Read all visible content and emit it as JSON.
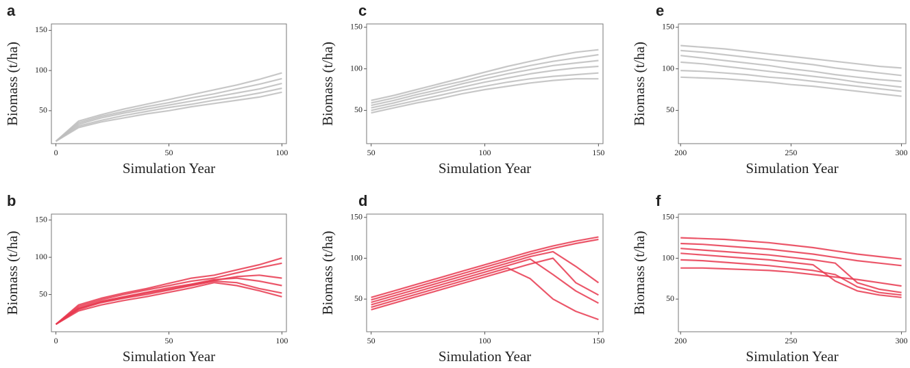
{
  "chart_data": [
    {
      "type": "line",
      "title": "a",
      "xlabel": "Simulation Year",
      "ylabel": "Biomass (t/ha)",
      "x": [
        0,
        10,
        20,
        30,
        40,
        50,
        60,
        70,
        80,
        90,
        100
      ],
      "xlim": [
        -2,
        102
      ],
      "ylim": [
        9,
        158
      ],
      "xticks": [
        0,
        50,
        100
      ],
      "yticks": [
        50,
        100,
        150
      ],
      "series": [
        {
          "color": "#bdbdbd",
          "values": [
            12,
            37,
            45,
            52,
            58,
            64,
            70,
            76,
            82,
            89,
            97
          ]
        },
        {
          "color": "#bdbdbd",
          "values": [
            12,
            35,
            43,
            49,
            55,
            60,
            66,
            71,
            77,
            83,
            90
          ]
        },
        {
          "color": "#bdbdbd",
          "values": [
            12,
            33,
            41,
            47,
            52,
            57,
            62,
            67,
            72,
            77,
            84
          ]
        },
        {
          "color": "#bdbdbd",
          "values": [
            12,
            31,
            38,
            44,
            49,
            54,
            58,
            63,
            67,
            72,
            78
          ]
        },
        {
          "color": "#bdbdbd",
          "values": [
            12,
            29,
            36,
            41,
            46,
            50,
            55,
            59,
            63,
            67,
            73
          ]
        }
      ]
    },
    {
      "type": "line",
      "title": "c",
      "xlabel": "Simulation Year",
      "ylabel": "Biomass (t/ha)",
      "x": [
        50,
        60,
        70,
        80,
        90,
        100,
        110,
        120,
        130,
        140,
        150
      ],
      "xlim": [
        48,
        152
      ],
      "ylim": [
        10,
        154
      ],
      "xticks": [
        50,
        100,
        150
      ],
      "yticks": [
        50,
        100,
        150
      ],
      "series": [
        {
          "color": "#bdbdbd",
          "values": [
            62,
            68,
            75,
            82,
            89,
            96,
            103,
            109,
            115,
            120,
            123
          ]
        },
        {
          "color": "#bdbdbd",
          "values": [
            59,
            65,
            72,
            79,
            85,
            92,
            98,
            104,
            109,
            113,
            117
          ]
        },
        {
          "color": "#bdbdbd",
          "values": [
            56,
            62,
            69,
            75,
            82,
            88,
            94,
            99,
            104,
            107,
            110
          ]
        },
        {
          "color": "#bdbdbd",
          "values": [
            53,
            59,
            66,
            72,
            78,
            84,
            89,
            94,
            98,
            101,
            103
          ]
        },
        {
          "color": "#bdbdbd",
          "values": [
            50,
            56,
            62,
            68,
            74,
            79,
            84,
            88,
            91,
            93,
            95
          ]
        },
        {
          "color": "#bdbdbd",
          "values": [
            47,
            53,
            59,
            64,
            70,
            75,
            79,
            83,
            86,
            88,
            88
          ]
        }
      ]
    },
    {
      "type": "line",
      "title": "e",
      "xlabel": "Simulation Year",
      "ylabel": "Biomass (t/ha)",
      "x": [
        200,
        210,
        220,
        230,
        240,
        250,
        260,
        270,
        280,
        290,
        300
      ],
      "xlim": [
        199,
        302
      ],
      "ylim": [
        10,
        154
      ],
      "xticks": [
        200,
        250,
        300
      ],
      "yticks": [
        50,
        100,
        150
      ],
      "series": [
        {
          "color": "#bdbdbd",
          "values": [
            128,
            126,
            124,
            121,
            118,
            115,
            112,
            109,
            106,
            103,
            101
          ]
        },
        {
          "color": "#bdbdbd",
          "values": [
            122,
            120,
            117,
            114,
            111,
            108,
            105,
            101,
            98,
            95,
            92
          ]
        },
        {
          "color": "#bdbdbd",
          "values": [
            116,
            113,
            110,
            107,
            104,
            100,
            97,
            93,
            90,
            87,
            85
          ]
        },
        {
          "color": "#bdbdbd",
          "values": [
            108,
            106,
            103,
            100,
            97,
            94,
            91,
            88,
            84,
            81,
            78
          ]
        },
        {
          "color": "#bdbdbd",
          "values": [
            98,
            97,
            95,
            93,
            90,
            88,
            85,
            82,
            79,
            76,
            73
          ]
        },
        {
          "color": "#bdbdbd",
          "values": [
            90,
            89,
            88,
            86,
            84,
            81,
            79,
            76,
            73,
            70,
            67
          ]
        }
      ]
    },
    {
      "type": "line",
      "title": "b",
      "xlabel": "Simulation Year",
      "ylabel": "Biomass (t/ha)",
      "x": [
        0,
        10,
        20,
        30,
        40,
        50,
        60,
        70,
        80,
        90,
        100
      ],
      "xlim": [
        -2,
        102
      ],
      "ylim": [
        0,
        158
      ],
      "xticks": [
        0,
        50,
        100
      ],
      "yticks": [
        50,
        100,
        150
      ],
      "series": [
        {
          "color": "#e8384f",
          "values": [
            10,
            36,
            45,
            52,
            58,
            65,
            72,
            76,
            83,
            90,
            99
          ]
        },
        {
          "color": "#e8384f",
          "values": [
            10,
            34,
            43,
            50,
            56,
            62,
            68,
            72,
            79,
            86,
            92
          ]
        },
        {
          "color": "#e8384f",
          "values": [
            10,
            32,
            41,
            47,
            53,
            59,
            64,
            70,
            72,
            68,
            62
          ]
        },
        {
          "color": "#e8384f",
          "values": [
            10,
            30,
            39,
            45,
            50,
            56,
            62,
            68,
            66,
            58,
            52
          ]
        },
        {
          "color": "#e8384f",
          "values": [
            10,
            28,
            36,
            42,
            47,
            53,
            59,
            66,
            62,
            55,
            47
          ]
        },
        {
          "color": "#e8384f",
          "values": [
            10,
            31,
            40,
            46,
            52,
            57,
            63,
            69,
            74,
            76,
            72
          ]
        }
      ]
    },
    {
      "type": "line",
      "title": "d",
      "xlabel": "Simulation Year",
      "ylabel": "Biomass (t/ha)",
      "x": [
        50,
        60,
        70,
        80,
        90,
        100,
        110,
        120,
        130,
        140,
        150
      ],
      "xlim": [
        48,
        152
      ],
      "ylim": [
        10,
        154
      ],
      "xticks": [
        50,
        100,
        150
      ],
      "yticks": [
        50,
        100,
        150
      ],
      "series": [
        {
          "color": "#e8384f",
          "values": [
            52,
            60,
            68,
            76,
            84,
            92,
            100,
            108,
            115,
            121,
            126
          ]
        },
        {
          "color": "#e8384f",
          "values": [
            49,
            57,
            65,
            73,
            81,
            89,
            97,
            105,
            112,
            118,
            123
          ]
        },
        {
          "color": "#e8384f",
          "values": [
            46,
            54,
            62,
            70,
            78,
            86,
            94,
            102,
            108,
            90,
            70
          ]
        },
        {
          "color": "#e8384f",
          "values": [
            43,
            51,
            59,
            67,
            75,
            83,
            91,
            99,
            80,
            60,
            45
          ]
        },
        {
          "color": "#e8384f",
          "values": [
            40,
            48,
            56,
            64,
            72,
            80,
            88,
            75,
            50,
            35,
            25
          ]
        },
        {
          "color": "#e8384f",
          "values": [
            37,
            45,
            53,
            61,
            69,
            77,
            85,
            93,
            100,
            70,
            55
          ]
        }
      ]
    },
    {
      "type": "line",
      "title": "f",
      "xlabel": "Simulation Year",
      "ylabel": "Biomass (t/ha)",
      "x": [
        200,
        210,
        220,
        230,
        240,
        250,
        260,
        270,
        280,
        290,
        300
      ],
      "xlim": [
        199,
        302
      ],
      "ylim": [
        10,
        154
      ],
      "xticks": [
        200,
        250,
        300
      ],
      "yticks": [
        50,
        100,
        150
      ],
      "series": [
        {
          "color": "#e8384f",
          "values": [
            125,
            124,
            123,
            121,
            119,
            116,
            113,
            109,
            105,
            102,
            99
          ]
        },
        {
          "color": "#e8384f",
          "values": [
            118,
            117,
            115,
            113,
            111,
            108,
            105,
            101,
            97,
            94,
            91
          ]
        },
        {
          "color": "#e8384f",
          "values": [
            112,
            110,
            108,
            106,
            104,
            101,
            98,
            94,
            70,
            62,
            58
          ]
        },
        {
          "color": "#e8384f",
          "values": [
            106,
            104,
            102,
            100,
            98,
            95,
            92,
            72,
            60,
            55,
            52
          ]
        },
        {
          "color": "#e8384f",
          "values": [
            98,
            97,
            95,
            93,
            91,
            88,
            85,
            80,
            65,
            58,
            55
          ]
        },
        {
          "color": "#e8384f",
          "values": [
            88,
            88,
            87,
            86,
            85,
            83,
            80,
            77,
            74,
            70,
            66
          ]
        }
      ]
    }
  ]
}
